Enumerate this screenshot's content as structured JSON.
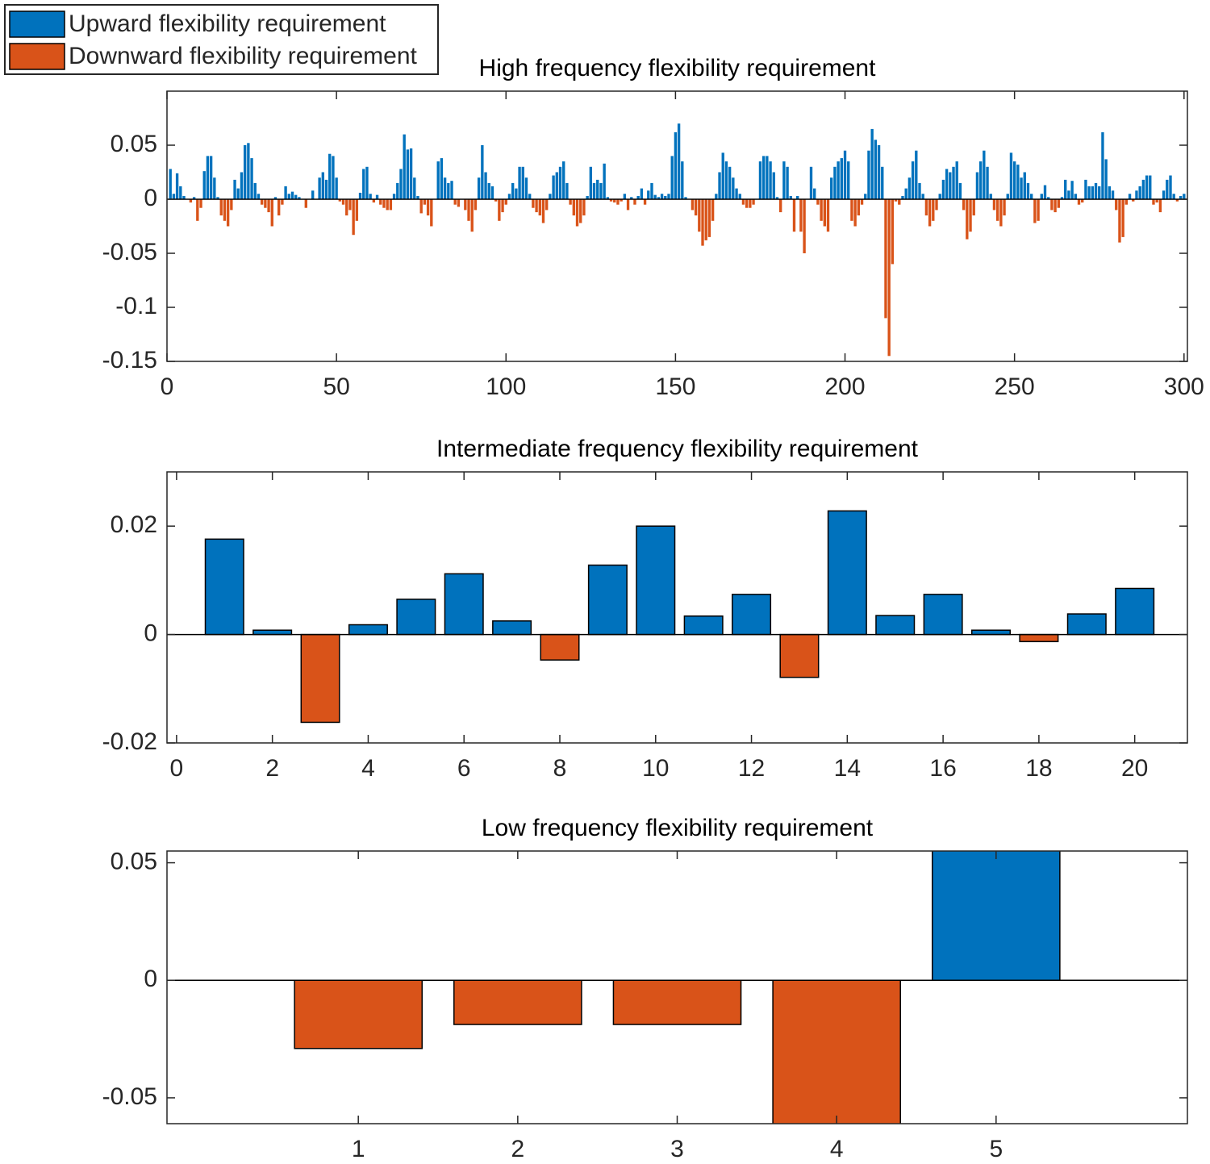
{
  "legend": {
    "entries": [
      {
        "name": "Upward flexibility requirement",
        "color": "#0072bd"
      },
      {
        "name": "Downward flexibility requirement",
        "color": "#d95319"
      }
    ]
  },
  "chart_data": [
    {
      "type": "bar",
      "title": "High frequency flexibility requirement",
      "x": [
        1,
        2,
        3,
        4,
        5,
        6,
        7,
        8,
        9,
        10,
        11,
        12,
        13,
        14,
        15,
        16,
        17,
        18,
        19,
        20,
        21,
        22,
        23,
        24,
        25,
        26,
        27,
        28,
        29,
        30,
        31,
        32,
        33,
        34,
        35,
        36,
        37,
        38,
        39,
        40,
        41,
        42,
        43,
        44,
        45,
        46,
        47,
        48,
        49,
        50,
        51,
        52,
        53,
        54,
        55,
        56,
        57,
        58,
        59,
        60,
        61,
        62,
        63,
        64,
        65,
        66,
        67,
        68,
        69,
        70,
        71,
        72,
        73,
        74,
        75,
        76,
        77,
        78,
        79,
        80,
        81,
        82,
        83,
        84,
        85,
        86,
        87,
        88,
        89,
        90,
        91,
        92,
        93,
        94,
        95,
        96,
        97,
        98,
        99,
        100,
        101,
        102,
        103,
        104,
        105,
        106,
        107,
        108,
        109,
        110,
        111,
        112,
        113,
        114,
        115,
        116,
        117,
        118,
        119,
        120,
        121,
        122,
        123,
        124,
        125,
        126,
        127,
        128,
        129,
        130,
        131,
        132,
        133,
        134,
        135,
        136,
        137,
        138,
        139,
        140,
        141,
        142,
        143,
        144,
        145,
        146,
        147,
        148,
        149,
        150,
        151,
        152,
        153,
        154,
        155,
        156,
        157,
        158,
        159,
        160,
        161,
        162,
        163,
        164,
        165,
        166,
        167,
        168,
        169,
        170,
        171,
        172,
        173,
        174,
        175,
        176,
        177,
        178,
        179,
        180,
        181,
        182,
        183,
        184,
        185,
        186,
        187,
        188,
        189,
        190,
        191,
        192,
        193,
        194,
        195,
        196,
        197,
        198,
        199,
        200,
        201,
        202,
        203,
        204,
        205,
        206,
        207,
        208,
        209,
        210,
        211,
        212,
        213,
        214,
        215,
        216,
        217,
        218,
        219,
        220,
        221,
        222,
        223,
        224,
        225,
        226,
        227,
        228,
        229,
        230,
        231,
        232,
        233,
        234,
        235,
        236,
        237,
        238,
        239,
        240,
        241,
        242,
        243,
        244,
        245,
        246,
        247,
        248,
        249,
        250,
        251,
        252,
        253,
        254,
        255,
        256,
        257,
        258,
        259,
        260,
        261,
        262,
        263,
        264,
        265,
        266,
        267,
        268,
        269,
        270,
        271,
        272,
        273,
        274,
        275,
        276,
        277,
        278,
        279,
        280,
        281,
        282,
        283,
        284,
        285,
        286,
        287,
        288,
        289,
        290,
        291,
        292,
        293,
        294,
        295,
        296,
        297,
        298,
        299,
        300
      ],
      "values": [
        0.028,
        0.005,
        0.024,
        0.012,
        0.003,
        0,
        -0.003,
        0.002,
        -0.02,
        -0.008,
        0.026,
        0.04,
        0.04,
        0.02,
        0.002,
        -0.015,
        -0.02,
        -0.025,
        -0.01,
        0.018,
        0.01,
        0.025,
        0.05,
        0.052,
        0.038,
        0.015,
        0.005,
        -0.005,
        -0.008,
        -0.012,
        -0.025,
        0.002,
        -0.015,
        -0.005,
        0.012,
        0.005,
        0.007,
        0.004,
        0.002,
        0,
        -0.008,
        0,
        0.008,
        0,
        0.02,
        0.025,
        0.018,
        0.042,
        0.04,
        0.02,
        -0.002,
        -0.005,
        -0.015,
        -0.01,
        -0.033,
        -0.02,
        0.006,
        0.028,
        0.03,
        0.005,
        -0.003,
        0.004,
        -0.005,
        -0.008,
        -0.01,
        -0.01,
        0.005,
        0.015,
        0.028,
        0.06,
        0.046,
        0.047,
        0.02,
        0.003,
        -0.013,
        -0.005,
        -0.015,
        -0.025,
        0,
        0.035,
        0.038,
        0.02,
        0.015,
        0.017,
        -0.005,
        -0.007,
        0,
        -0.01,
        -0.02,
        -0.03,
        -0.01,
        0.02,
        0.05,
        0.025,
        0.015,
        0.012,
        -0.002,
        -0.02,
        -0.012,
        -0.005,
        0.005,
        0.015,
        0.01,
        0.03,
        0.03,
        0.02,
        0.005,
        -0.008,
        -0.012,
        -0.015,
        -0.022,
        -0.01,
        0.005,
        0.022,
        0.025,
        0.03,
        0.035,
        0.015,
        -0.005,
        -0.015,
        -0.025,
        -0.022,
        -0.015,
        0.003,
        0.03,
        0.015,
        0.018,
        0.015,
        0.033,
        0.002,
        -0.002,
        -0.003,
        -0.005,
        -0.002,
        0.005,
        -0.01,
        0.002,
        -0.005,
        0.003,
        0.01,
        -0.005,
        0.008,
        0.015,
        0.004,
        0.002,
        0.005,
        0.003,
        0.005,
        0.04,
        0.062,
        0.07,
        0.035,
        0.002,
        0,
        -0.01,
        -0.015,
        -0.03,
        -0.043,
        -0.038,
        -0.035,
        -0.02,
        0.005,
        0.025,
        0.043,
        0.035,
        0.03,
        0.02,
        0.01,
        0.005,
        -0.005,
        -0.008,
        -0.008,
        -0.005,
        0,
        0.035,
        0.04,
        0.04,
        0.035,
        0.025,
        0.002,
        -0.012,
        0.035,
        0.03,
        0.003,
        -0.03,
        0.003,
        -0.03,
        -0.05,
        0,
        0.03,
        0.01,
        -0.005,
        -0.02,
        -0.025,
        -0.03,
        0.02,
        0.03,
        0.035,
        0.038,
        0.045,
        0.035,
        -0.02,
        -0.025,
        -0.015,
        -0.005,
        0.005,
        0.045,
        0.065,
        0.055,
        0.05,
        0.03,
        -0.11,
        -0.145,
        -0.06,
        -0.002,
        -0.005,
        0.003,
        0.01,
        0.02,
        0.035,
        0.045,
        0.015,
        0.005,
        -0.015,
        -0.025,
        -0.02,
        -0.01,
        0.005,
        0.018,
        0.028,
        0.025,
        0.03,
        0.035,
        0.015,
        -0.01,
        -0.037,
        -0.03,
        -0.015,
        0.025,
        0.035,
        0.045,
        0.03,
        0.005,
        -0.01,
        -0.02,
        -0.025,
        -0.015,
        0.005,
        0.043,
        0.035,
        0.032,
        0.02,
        0.025,
        0.015,
        0.005,
        -0.022,
        -0.02,
        0.005,
        0.013,
        0.002,
        -0.01,
        -0.012,
        -0.008,
        0.002,
        0.018,
        0.008,
        0.017,
        0.005,
        -0.005,
        -0.003,
        0.018,
        0.012,
        0.012,
        0.015,
        0.012,
        0.062,
        0.037,
        0.012,
        0.008,
        -0.01,
        -0.04,
        -0.035,
        -0.005,
        0.005,
        -0.002,
        0.008,
        0.012,
        0.018,
        0.022,
        0.022,
        -0.005,
        -0.003,
        -0.012,
        0.008,
        0.018,
        0.022,
        0.005,
        -0.002,
        0.003,
        0.005
      ],
      "xlim": [
        0,
        301
      ],
      "xticks": [
        0,
        50,
        100,
        150,
        200,
        250,
        300
      ],
      "ylim": [
        -0.15,
        0.1
      ],
      "yticks": [
        -0.15,
        -0.1,
        -0.05,
        0,
        0.05
      ]
    },
    {
      "type": "bar",
      "title": "Intermediate frequency flexibility requirement",
      "x": [
        1,
        2,
        3,
        4,
        5,
        6,
        7,
        8,
        9,
        10,
        11,
        12,
        13,
        14,
        15,
        16,
        17,
        18,
        19,
        20
      ],
      "values": [
        0.0176,
        0.0008,
        -0.0162,
        0.0018,
        0.0065,
        0.0112,
        0.0025,
        -0.0047,
        0.0128,
        0.02,
        0.0034,
        0.0074,
        -0.0079,
        0.0228,
        0.0035,
        0.0074,
        0.0008,
        -0.0013,
        0.0038,
        0.0085
      ],
      "xlim": [
        -0.2,
        21.1
      ],
      "xticks": [
        0,
        2,
        4,
        6,
        8,
        10,
        12,
        14,
        16,
        18,
        20
      ],
      "ylim": [
        -0.02,
        0.03
      ],
      "yticks": [
        -0.02,
        0,
        0.02
      ],
      "bar_edge_color": "#000000"
    },
    {
      "type": "bar",
      "title": "Low frequency flexibility requirement",
      "x": [
        1,
        2,
        3,
        4,
        5
      ],
      "values": [
        -0.029,
        -0.0188,
        -0.0188,
        -0.065,
        0.06
      ],
      "xlim": [
        -0.2,
        6.2
      ],
      "xticks": [
        1,
        2,
        3,
        4,
        5
      ],
      "ylim": [
        -0.061,
        0.055
      ],
      "yticks": [
        -0.05,
        0,
        0.05
      ],
      "bar_edge_color": "#000000"
    }
  ]
}
